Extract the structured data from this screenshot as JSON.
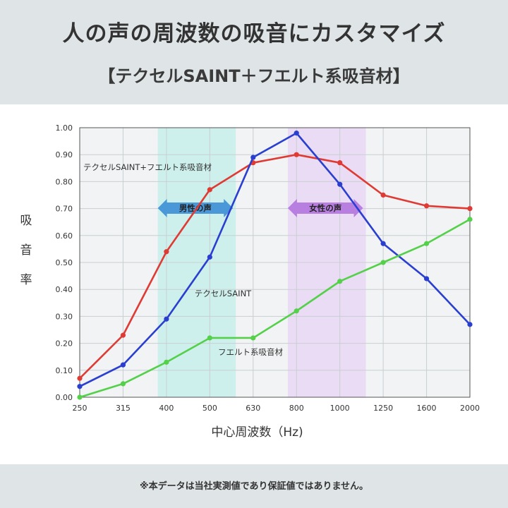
{
  "header": {
    "title": "人の声の周波数の吸音にカスタマイズ",
    "subtitle": "【テクセルSAINT＋フエルト系吸音材】"
  },
  "footer": {
    "note": "※本データは当社実測値であり保証値ではありません。"
  },
  "chart_data": {
    "type": "line",
    "xlabel": "中心周波数（Hz)",
    "ylabel": "吸音率",
    "categories": [
      "250",
      "315",
      "400",
      "500",
      "630",
      "800",
      "1000",
      "1250",
      "1600",
      "2000"
    ],
    "ylim": [
      0,
      1.0
    ],
    "yticks": [
      "0.00",
      "0.10",
      "0.20",
      "0.30",
      "0.40",
      "0.50",
      "0.60",
      "0.70",
      "0.80",
      "0.90",
      "1.00"
    ],
    "grid": true,
    "series": [
      {
        "name": "テクセルSAINT+フエルト系吸音材",
        "color": "#e03a34",
        "values": [
          0.07,
          0.23,
          0.54,
          0.77,
          0.87,
          0.9,
          0.87,
          0.75,
          0.71,
          0.7
        ]
      },
      {
        "name": "テクセルSAINT",
        "color": "#2a3fd0",
        "values": [
          0.04,
          0.12,
          0.29,
          0.52,
          0.89,
          0.98,
          0.79,
          0.57,
          0.44,
          0.27
        ]
      },
      {
        "name": "フエルト系吸音材",
        "color": "#55d04a",
        "values": [
          0.0,
          0.05,
          0.13,
          0.22,
          0.22,
          0.32,
          0.43,
          0.5,
          0.57,
          0.66
        ]
      }
    ],
    "bands": [
      {
        "label": "男性の声",
        "color": "#cdf0ec",
        "arrow_color": "#4a98d8",
        "from": "400",
        "to": "500"
      },
      {
        "label": "女性の声",
        "color": "#eadcf4",
        "arrow_color": "#b97fe0",
        "from": "800",
        "to": "1000"
      }
    ]
  }
}
